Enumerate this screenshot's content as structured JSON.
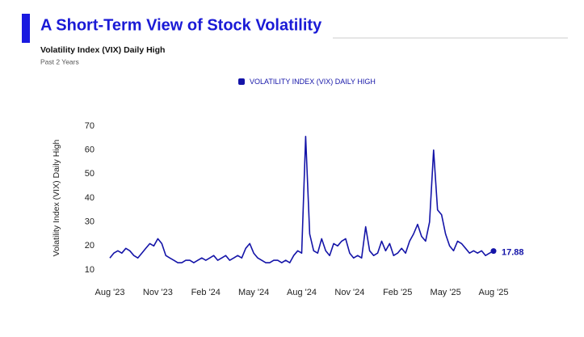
{
  "chart_data": {
    "type": "line",
    "title": "A Short-Term View of Stock Volatility",
    "subtitle": "Volatility Index (VIX) Daily High",
    "note": "Past 2 Years",
    "ylabel": "Volatility Index (VIX) Daily High",
    "x": [
      0,
      0.25,
      0.5,
      0.75,
      1,
      1.25,
      1.5,
      1.75,
      2,
      2.25,
      2.5,
      2.75,
      3,
      3.25,
      3.5,
      3.75,
      4,
      4.25,
      4.5,
      4.75,
      5,
      5.25,
      5.5,
      5.75,
      6,
      6.25,
      6.5,
      6.75,
      7,
      7.25,
      7.5,
      7.75,
      8,
      8.25,
      8.5,
      8.75,
      9,
      9.25,
      9.5,
      9.75,
      10,
      10.25,
      10.5,
      10.75,
      11,
      11.25,
      11.5,
      11.75,
      12,
      12.25,
      12.5,
      12.75,
      13,
      13.25,
      13.5,
      13.75,
      14,
      14.25,
      14.5,
      14.75,
      15,
      15.25,
      15.5,
      15.75,
      16,
      16.25,
      16.5,
      16.75,
      17,
      17.25,
      17.5,
      17.75,
      18,
      18.25,
      18.5,
      18.75,
      19,
      19.25,
      19.5,
      19.75,
      20,
      20.25,
      20.5,
      20.75,
      21,
      21.25,
      21.5,
      21.75,
      22,
      22.25,
      22.5,
      22.75,
      23,
      23.25,
      23.5,
      23.75,
      24
    ],
    "series": [
      {
        "name": "VOLATILITY INDEX (VIX) DAILY HIGH",
        "color": "#1414a8",
        "values": [
          15,
          17,
          18,
          17,
          19,
          18,
          16,
          15,
          17,
          19,
          21,
          20,
          23,
          21,
          16,
          15,
          14,
          13,
          13,
          14,
          14,
          13,
          14,
          15,
          14,
          15,
          16,
          14,
          15,
          16,
          14,
          15,
          16,
          15,
          19,
          21,
          17,
          15,
          14,
          13,
          13,
          14,
          14,
          13,
          14,
          13,
          16,
          18,
          17,
          65.7,
          25,
          18,
          17,
          23,
          18,
          16,
          21,
          20,
          22,
          23,
          17,
          15,
          16,
          15,
          28,
          18,
          16,
          17,
          22,
          18,
          21,
          16,
          17,
          19,
          17,
          22,
          25,
          29,
          24,
          22,
          30,
          60,
          35,
          33,
          25,
          20,
          18,
          22,
          21,
          19,
          17,
          18,
          17,
          18,
          16,
          17,
          17.88
        ]
      }
    ],
    "xlim": [
      0,
      24
    ],
    "xticks": [
      {
        "value": 0,
        "label": "Aug '23"
      },
      {
        "value": 3,
        "label": "Nov '23"
      },
      {
        "value": 6,
        "label": "Feb '24"
      },
      {
        "value": 9,
        "label": "May '24"
      },
      {
        "value": 12,
        "label": "Aug '24"
      },
      {
        "value": 15,
        "label": "Nov '24"
      },
      {
        "value": 18,
        "label": "Feb '25"
      },
      {
        "value": 21,
        "label": "May '25"
      },
      {
        "value": 24,
        "label": "Aug '25"
      }
    ],
    "ylim": [
      10,
      70
    ],
    "yticks": [
      10,
      20,
      30,
      40,
      50,
      60,
      70
    ],
    "grid": false,
    "legend": "top"
  }
}
